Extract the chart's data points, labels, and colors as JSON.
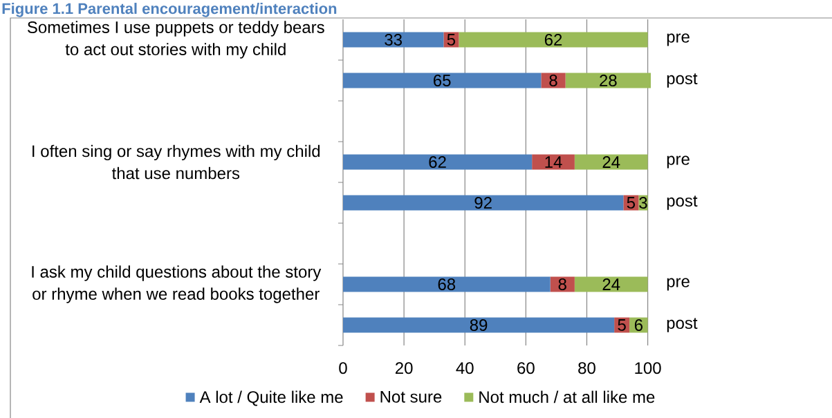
{
  "chart_data": {
    "type": "bar",
    "orientation": "horizontal",
    "stacked": true,
    "title": "Figure 1.1 Parental encouragement/interaction",
    "categories": [
      "Sometimes I use puppets or teddy bears to act out stories with my child",
      null,
      null,
      "I often sing or say rhymes with my child that use numbers",
      null,
      null,
      "I ask my child questions about the story or rhyme when we read books together",
      null
    ],
    "series": [
      {
        "name": "A lot / Quite like me",
        "color": "#4f81bd",
        "values": [
          33,
          65,
          null,
          62,
          92,
          null,
          68,
          89
        ]
      },
      {
        "name": "Not sure",
        "color": "#c0504d",
        "values": [
          5,
          8,
          null,
          14,
          5,
          null,
          8,
          5
        ]
      },
      {
        "name": "Not much / at all like me",
        "color": "#9bbb59",
        "values": [
          62,
          28,
          null,
          24,
          3,
          null,
          24,
          6
        ]
      }
    ],
    "xlim": [
      0,
      101
    ],
    "xticks": [
      0,
      20,
      40,
      60,
      80,
      100
    ],
    "grid": "x",
    "legend": "bottom",
    "data_labels": true,
    "annotations": [
      "pre",
      "post",
      "pre",
      "post",
      "pre",
      "post"
    ]
  }
}
